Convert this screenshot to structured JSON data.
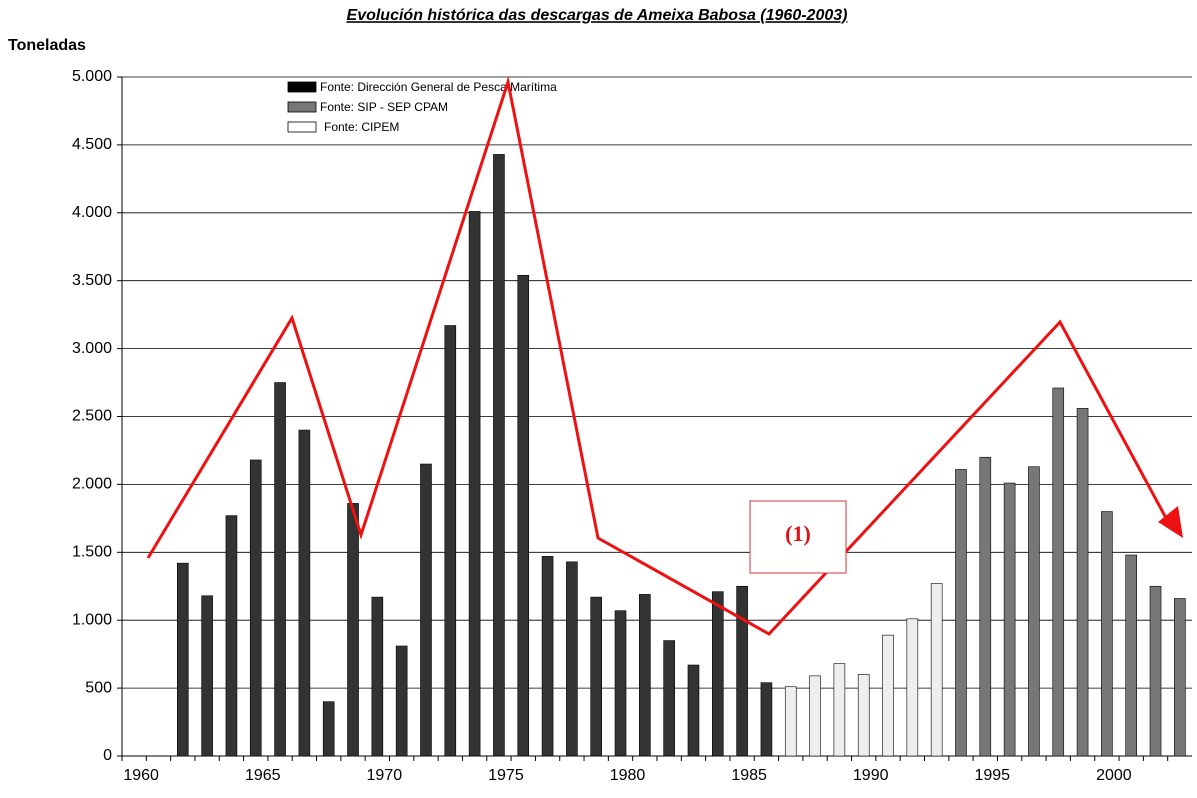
{
  "chart_data": {
    "type": "bar",
    "title": "Evolución histórica das descargas de Ameixa Babosa (1960-2003)",
    "y_label": "Toneladas",
    "annotation": "(1)",
    "categories": [
      "1960",
      null,
      null,
      null,
      null,
      "1965",
      null,
      null,
      null,
      null,
      "1970",
      null,
      null,
      null,
      null,
      "1975",
      null,
      null,
      null,
      null,
      "1980",
      null,
      null,
      null,
      null,
      "1985",
      null,
      null,
      null,
      null,
      "1990",
      null,
      null,
      null,
      null,
      "1995",
      null,
      null,
      null,
      null,
      "2000",
      null,
      null,
      null
    ],
    "series": [
      {
        "name": "Fonte: Dirección General de Pesca Marítima",
        "color": "#333333",
        "legend_color": "#000000",
        "values": [
          null,
          null,
          1420,
          1180,
          1770,
          2180,
          2750,
          2400,
          400,
          1860,
          1170,
          810,
          2150,
          3170,
          4010,
          4430,
          3540,
          1470,
          1430,
          1170,
          1070,
          1190,
          850,
          670,
          1210,
          1250,
          540,
          null,
          null,
          null,
          null,
          null,
          null,
          null,
          null,
          null,
          null,
          null,
          null,
          null,
          null,
          null,
          null,
          null
        ]
      },
      {
        "name": "Fonte: SIP - SEP CPAM",
        "color": "#777777",
        "legend_color": "#777777",
        "values": [
          null,
          null,
          null,
          null,
          null,
          null,
          null,
          null,
          null,
          null,
          null,
          null,
          null,
          null,
          null,
          null,
          null,
          null,
          null,
          null,
          null,
          null,
          null,
          null,
          null,
          null,
          null,
          null,
          null,
          null,
          null,
          null,
          null,
          null,
          2110,
          2200,
          2010,
          2130,
          2710,
          2560,
          1800,
          1480,
          1250,
          1160
        ]
      },
      {
        "name": "Fonte: CIPEM",
        "color": "#eeeeee",
        "legend_color": "#ffffff",
        "values": [
          null,
          null,
          null,
          null,
          null,
          null,
          null,
          null,
          null,
          null,
          null,
          null,
          null,
          null,
          null,
          null,
          null,
          null,
          null,
          null,
          null,
          null,
          null,
          null,
          null,
          null,
          null,
          510,
          590,
          680,
          600,
          890,
          1010,
          1270,
          null,
          null,
          null,
          null,
          null,
          null,
          null,
          null,
          null,
          null
        ]
      }
    ],
    "ylim": [
      0,
      5000
    ],
    "yticks": [
      0,
      500,
      {
        "value": 1000,
        "label": "1.000"
      },
      {
        "value": 1500,
        "label": "1.500"
      },
      {
        "value": 2000,
        "label": "2.000"
      },
      {
        "value": 2500,
        "label": "2.500"
      },
      {
        "value": 3000,
        "label": "3.000"
      },
      {
        "value": 3500,
        "label": "3.500"
      },
      {
        "value": 4000,
        "label": "4.000"
      },
      {
        "value": 4500,
        "label": "4.500"
      },
      {
        "value": 5000,
        "label": "5.000"
      }
    ],
    "grid": true
  }
}
